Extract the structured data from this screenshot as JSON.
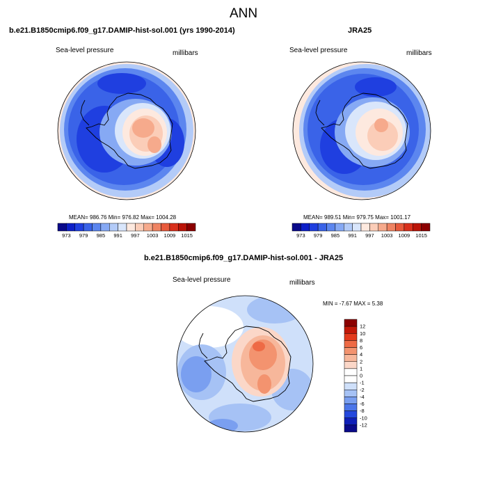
{
  "figure": {
    "title": "ANN",
    "season": "ANN",
    "variable_label": "Sea-level pressure",
    "units_label": "millibars"
  },
  "panels": {
    "model": {
      "title": "b.e21.B1850cmip6.f09_g17.DAMIP-hist-sol.001 (yrs 1990-2014)",
      "variable_label": "Sea-level pressure",
      "units_label": "millibars",
      "stats_text": "MEAN= 986.76   Min= 976.82   Max= 1004.28",
      "mean": 986.76,
      "min": 976.82,
      "max": 1004.28
    },
    "obs": {
      "title": "JRA25",
      "variable_label": "Sea-level pressure",
      "units_label": "millibars",
      "stats_text": "MEAN= 989.51   Min= 979.75   Max= 1001.17",
      "mean": 989.51,
      "min": 979.75,
      "max": 1001.17
    },
    "diff": {
      "title": "b.e21.B1850cmip6.f09_g17.DAMIP-hist-sol.001 - JRA25",
      "variable_label": "Sea-level pressure",
      "units_label": "millibars",
      "stats_text": "MIN = -7.67 MAX =   5.38",
      "min": -7.67,
      "max": 5.38
    }
  },
  "colorbars": {
    "abs": {
      "ticks": [
        "973",
        "979",
        "985",
        "991",
        "997",
        "1003",
        "1009",
        "1015"
      ],
      "colors": [
        "#0a0a8a",
        "#0d1fc8",
        "#1f3fe0",
        "#3a63e8",
        "#5c86ef",
        "#86a9f4",
        "#b3cbf8",
        "#d9e6fb",
        "#fde9df",
        "#fbcdb8",
        "#f6aa8c",
        "#ef8463",
        "#e85a3c",
        "#d9301c",
        "#bb1408",
        "#8b0000"
      ]
    },
    "diff": {
      "ticks": [
        "12",
        "10",
        "8",
        "6",
        "4",
        "2",
        "1",
        "0",
        "-1",
        "-2",
        "-4",
        "-6",
        "-8",
        "-10",
        "-12"
      ],
      "colors": [
        "#8b0000",
        "#c21808",
        "#e33a1c",
        "#ee6a45",
        "#f3936f",
        "#f7b79b",
        "#fbd7c8",
        "#ffffff",
        "#ffffff",
        "#cfe0fa",
        "#a6c2f5",
        "#7a9ff0",
        "#4c76e9",
        "#2448dd",
        "#0f1fb8",
        "#0a0a8a"
      ]
    }
  }
}
